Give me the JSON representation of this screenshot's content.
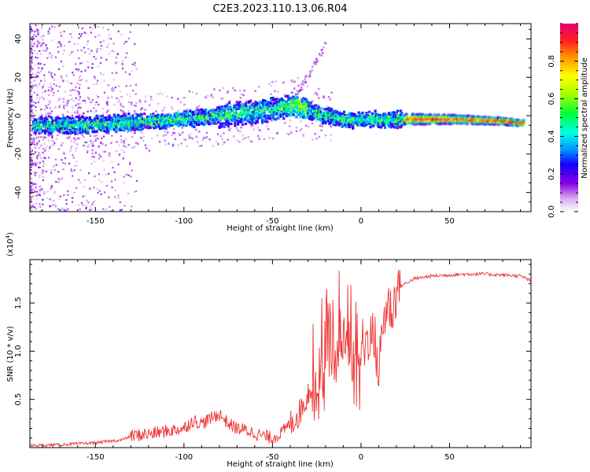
{
  "page": {
    "title": "C2E3.2023.110.13.06.R04"
  },
  "chart_data": [
    {
      "type": "heatmap",
      "title": "C2E3.2023.110.13.06.R04",
      "xlabel": "Height of straight line (km)",
      "ylabel": "Frequency (Hz)",
      "xlim": [
        -187,
        96
      ],
      "ylim": [
        -50,
        48
      ],
      "xticks": [
        -150,
        -100,
        -50,
        0,
        50
      ],
      "yticks": [
        -40,
        -20,
        0,
        20,
        40
      ],
      "colorbar": {
        "label": "Normalized spectral amplitude",
        "range": [
          0.0,
          1.0
        ],
        "ticks": [
          0.0,
          0.2,
          0.4,
          0.6,
          0.8
        ]
      },
      "ridge": {
        "x": [
          -185,
          -160,
          -140,
          -120,
          -100,
          -80,
          -60,
          -45,
          -38,
          -30,
          -20,
          -10,
          0,
          20,
          50,
          80,
          90
        ],
        "frequency": [
          -5,
          -5,
          -4,
          -3,
          -2,
          0,
          2,
          4,
          6,
          3,
          0,
          -2,
          -2,
          -2,
          -2,
          -3,
          -4
        ]
      }
    },
    {
      "type": "line",
      "xlabel": "Height of straight line (km)",
      "ylabel": "SNR (10 * v/v)",
      "y_multiplier": "(x10",
      "y_multiplier_exp": "4",
      "y_multiplier_close": ")",
      "xlim": [
        -187,
        96
      ],
      "ylim": [
        0,
        1.95
      ],
      "xticks": [
        -150,
        -100,
        -50,
        0,
        50
      ],
      "yticks": [
        0.5,
        1.0,
        1.5
      ],
      "color": "#ee3333",
      "series": [
        {
          "x": [
            -187,
            -170,
            -150,
            -135,
            -130,
            -120,
            -110,
            -100,
            -95,
            -90,
            -85,
            -80,
            -75,
            -70,
            -65,
            -60,
            -55,
            -50,
            -45,
            -40,
            -35,
            -30,
            -27,
            -24,
            -20,
            -18,
            -15,
            -12,
            -10,
            -8,
            -5,
            -2,
            0,
            2,
            5,
            8,
            10,
            12,
            15,
            18,
            20,
            25,
            30,
            40,
            50,
            60,
            70,
            80,
            90,
            96
          ],
          "y": [
            0.02,
            0.03,
            0.05,
            0.08,
            0.12,
            0.14,
            0.17,
            0.2,
            0.28,
            0.25,
            0.3,
            0.35,
            0.25,
            0.2,
            0.18,
            0.15,
            0.12,
            0.1,
            0.15,
            0.25,
            0.35,
            0.55,
            0.75,
            0.95,
            1.1,
            1.2,
            1.3,
            1.5,
            1.2,
            1.4,
            1.1,
            1.0,
            1.15,
            1.05,
            1.2,
            1.1,
            0.75,
            1.25,
            1.5,
            1.4,
            1.65,
            1.7,
            1.75,
            1.78,
            1.79,
            1.8,
            1.8,
            1.79,
            1.78,
            1.73
          ]
        }
      ]
    }
  ]
}
